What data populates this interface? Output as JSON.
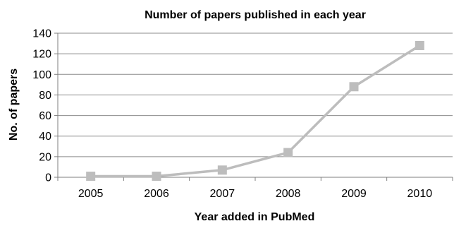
{
  "chart_data": {
    "type": "line",
    "title": "Number of papers published in each year",
    "xlabel": "Year added in PubMed",
    "ylabel": "No. of papers",
    "categories": [
      "2005",
      "2006",
      "2007",
      "2008",
      "2009",
      "2010"
    ],
    "yticks": [
      "0",
      "20",
      "40",
      "60",
      "80",
      "100",
      "120",
      "140"
    ],
    "ylim": [
      0,
      140
    ],
    "grid": true,
    "legend": "none",
    "series": [
      {
        "values": [
          1,
          1,
          7,
          24,
          88,
          128
        ],
        "color": "#bdbdbd",
        "marker": "square"
      }
    ],
    "colors": {
      "gridline": "#8c8c8c",
      "axis": "#7f7f7f",
      "line": "#bdbdbd"
    }
  }
}
